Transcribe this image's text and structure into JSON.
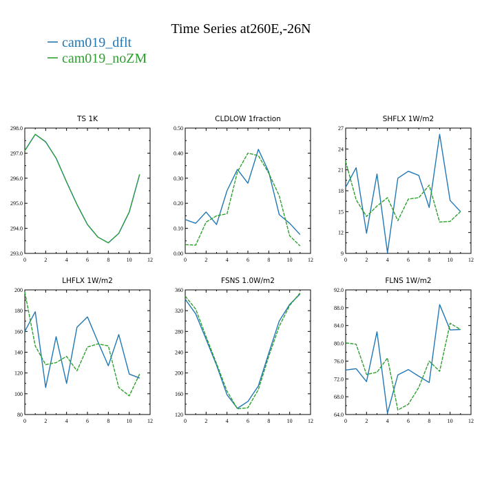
{
  "page_title": "Time Series at260E,-26N",
  "legend": [
    {
      "label": "cam019_dflt",
      "color": "#1f77b4",
      "dash": false
    },
    {
      "label": "cam019_noZM",
      "color": "#2ca02c",
      "dash": true
    }
  ],
  "chart_data": [
    {
      "type": "line",
      "title": "TS   1K",
      "xlim": [
        0,
        12
      ],
      "xticks": [
        0,
        2,
        4,
        6,
        8,
        10,
        12
      ],
      "ylim": [
        293,
        298
      ],
      "yticks": [
        293,
        294,
        295,
        296,
        297,
        298
      ],
      "ydecimals": 1,
      "x": [
        0,
        1,
        2,
        3,
        4,
        5,
        6,
        7,
        8,
        9,
        10,
        11
      ],
      "series": [
        {
          "name": "cam019_dflt",
          "values": [
            297.1,
            297.75,
            297.45,
            296.8,
            295.85,
            294.95,
            294.15,
            293.65,
            293.42,
            293.8,
            294.65,
            296.15
          ]
        },
        {
          "name": "cam019_noZM",
          "values": [
            297.1,
            297.75,
            297.45,
            296.8,
            295.85,
            294.95,
            294.15,
            293.65,
            293.42,
            293.8,
            294.65,
            296.15
          ]
        }
      ]
    },
    {
      "type": "line",
      "title": "CLDLOW   1fraction",
      "xlim": [
        0,
        12
      ],
      "xticks": [
        0,
        2,
        4,
        6,
        8,
        10,
        12
      ],
      "ylim": [
        0,
        0.5
      ],
      "yticks": [
        0,
        0.1,
        0.2,
        0.3,
        0.4,
        0.5
      ],
      "ydecimals": 2,
      "x": [
        0,
        1,
        2,
        3,
        4,
        5,
        6,
        7,
        8,
        9,
        10,
        11
      ],
      "series": [
        {
          "name": "cam019_dflt",
          "values": [
            0.135,
            0.12,
            0.165,
            0.115,
            0.25,
            0.335,
            0.28,
            0.415,
            0.325,
            0.155,
            0.12,
            0.075
          ]
        },
        {
          "name": "cam019_noZM",
          "values": [
            0.035,
            0.033,
            0.125,
            0.15,
            0.158,
            0.325,
            0.4,
            0.39,
            0.32,
            0.23,
            0.07,
            0.03
          ]
        }
      ]
    },
    {
      "type": "line",
      "title": "SHFLX   1W/m2",
      "xlim": [
        0,
        12
      ],
      "xticks": [
        0,
        2,
        4,
        6,
        8,
        10,
        12
      ],
      "ylim": [
        9,
        27
      ],
      "yticks": [
        9,
        12,
        15,
        18,
        21,
        24,
        27
      ],
      "ydecimals": 0,
      "x": [
        0,
        1,
        2,
        3,
        4,
        5,
        6,
        7,
        8,
        9,
        10,
        11
      ],
      "series": [
        {
          "name": "cam019_dflt",
          "values": [
            18.5,
            21.3,
            11.9,
            20.4,
            9.1,
            19.8,
            20.8,
            20.2,
            15.6,
            26.1,
            16.6,
            15.0
          ]
        },
        {
          "name": "cam019_noZM",
          "values": [
            22.2,
            16.7,
            14.3,
            15.8,
            17.0,
            13.7,
            16.8,
            17.0,
            18.8,
            13.5,
            13.6,
            15.0
          ]
        }
      ]
    },
    {
      "type": "line",
      "title": "LHFLX   1W/m2",
      "xlim": [
        0,
        12
      ],
      "xticks": [
        0,
        2,
        4,
        6,
        8,
        10,
        12
      ],
      "ylim": [
        80,
        200
      ],
      "yticks": [
        80,
        100,
        120,
        140,
        160,
        180,
        200
      ],
      "ydecimals": 0,
      "x": [
        0,
        1,
        2,
        3,
        4,
        5,
        6,
        7,
        8,
        9,
        10,
        11
      ],
      "series": [
        {
          "name": "cam019_dflt",
          "values": [
            160,
            179,
            106,
            155,
            110,
            164,
            174,
            150,
            127,
            157,
            119,
            115
          ]
        },
        {
          "name": "cam019_noZM",
          "values": [
            198,
            146,
            128,
            130,
            136,
            122,
            145,
            148,
            146,
            106,
            98,
            119
          ]
        }
      ]
    },
    {
      "type": "line",
      "title": "FSNS   1.0W/m2",
      "xlim": [
        0,
        12
      ],
      "xticks": [
        0,
        2,
        4,
        6,
        8,
        10,
        12
      ],
      "ylim": [
        120,
        360
      ],
      "yticks": [
        120,
        160,
        200,
        240,
        280,
        320,
        360
      ],
      "ydecimals": 0,
      "x": [
        0,
        1,
        2,
        3,
        4,
        5,
        6,
        7,
        8,
        9,
        10,
        11
      ],
      "series": [
        {
          "name": "cam019_dflt",
          "values": [
            342,
            314,
            265,
            215,
            158,
            132,
            145,
            175,
            238,
            300,
            332,
            352
          ]
        },
        {
          "name": "cam019_noZM",
          "values": [
            348,
            323,
            270,
            218,
            165,
            131,
            133,
            168,
            232,
            290,
            330,
            354
          ]
        }
      ]
    },
    {
      "type": "line",
      "title": "FLNS   1W/m2",
      "xlim": [
        0,
        12
      ],
      "xticks": [
        0,
        2,
        4,
        6,
        8,
        10,
        12
      ],
      "ylim": [
        64,
        92
      ],
      "yticks": [
        64,
        68,
        72,
        76,
        80,
        84,
        88,
        92
      ],
      "ydecimals": 1,
      "x": [
        0,
        1,
        2,
        3,
        4,
        5,
        6,
        7,
        8,
        9,
        10,
        11
      ],
      "series": [
        {
          "name": "cam019_dflt",
          "values": [
            74.0,
            74.3,
            71.4,
            82.6,
            64.3,
            72.9,
            74.1,
            72.6,
            71.2,
            88.7,
            83.0,
            83.1
          ]
        },
        {
          "name": "cam019_noZM",
          "values": [
            80.1,
            79.8,
            73.0,
            73.5,
            76.7,
            65.0,
            66.3,
            70.1,
            76.0,
            73.7,
            84.5,
            83.1
          ]
        }
      ]
    }
  ]
}
